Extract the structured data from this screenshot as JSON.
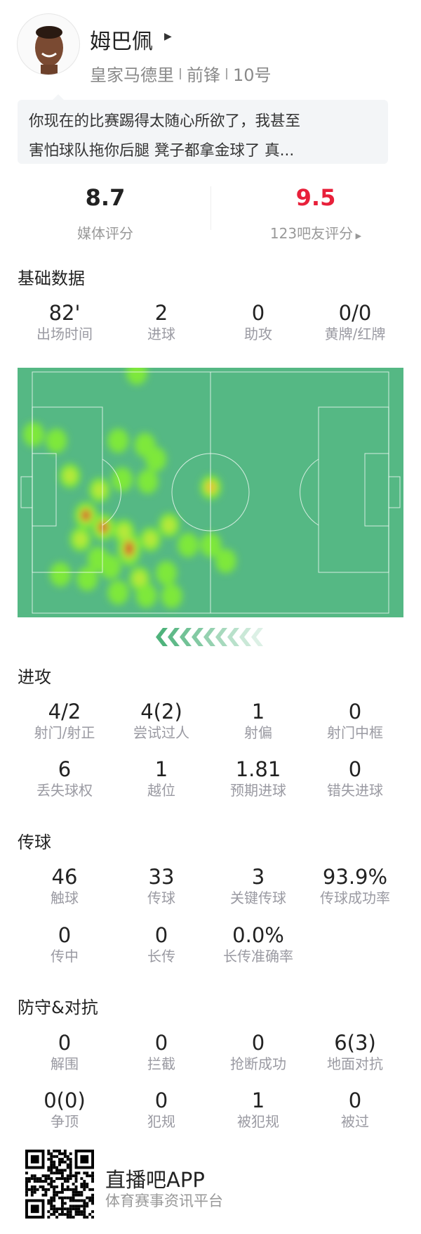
{
  "player": {
    "name": "姆巴佩",
    "team": "皇家马德里",
    "position": "前锋",
    "number": "10号"
  },
  "quote": {
    "line1": "你现在的比赛踢得太随心所欲了，我甚至",
    "line2": "害怕球队拖你后腿 凳子都拿金球了 真..."
  },
  "ratings": {
    "media_value": "8.7",
    "media_label": "媒体评分",
    "fan_value": "9.5",
    "fan_label": "123吧友评分",
    "fan_color": "#e8203a"
  },
  "basic": {
    "title": "基础数据",
    "stats": [
      {
        "v": "82'",
        "l": "出场时间"
      },
      {
        "v": "2",
        "l": "进球"
      },
      {
        "v": "0",
        "l": "助攻"
      },
      {
        "v": "0/0",
        "l": "黄牌/红牌"
      }
    ]
  },
  "heatmap": {
    "pitch_color": "#55b884",
    "attack_direction": "left",
    "points_m": [
      [
        30.8,
        0.2,
        1
      ],
      [
        0.4,
        17.6,
        1
      ],
      [
        7.1,
        19.4,
        1
      ],
      [
        25.3,
        19.4,
        1
      ],
      [
        33.2,
        20.6,
        1
      ],
      [
        36.4,
        24.6,
        1
      ],
      [
        11.1,
        29.3,
        1.5
      ],
      [
        26.5,
        30.3,
        1
      ],
      [
        34,
        30.9,
        1
      ],
      [
        19.8,
        33.3,
        1.4
      ],
      [
        52.6,
        32.5,
        2
      ],
      [
        15.8,
        40.4,
        3
      ],
      [
        20.9,
        43.8,
        3
      ],
      [
        28.5,
        49.8,
        3.2
      ],
      [
        40.3,
        43.2,
        1.4
      ],
      [
        45.9,
        48.8,
        1
      ],
      [
        52.6,
        48.8,
        1
      ],
      [
        57,
        53.3,
        1
      ],
      [
        19.4,
        52.7,
        1
      ],
      [
        8.3,
        57.1,
        1
      ],
      [
        16.2,
        58.3,
        1
      ],
      [
        39.5,
        56.7,
        1
      ],
      [
        31.6,
        58.3,
        1.5
      ],
      [
        25.3,
        62.2,
        1.3
      ],
      [
        33.6,
        63,
        1.3
      ],
      [
        41.1,
        63.2,
        1
      ],
      [
        14.2,
        47.2,
        1.5
      ],
      [
        34.8,
        47.2,
        1.5
      ],
      [
        27,
        45,
        1.6
      ],
      [
        23,
        55,
        1.2
      ]
    ]
  },
  "attack": {
    "title": "进攻",
    "rows": [
      [
        {
          "v": "4/2",
          "l": "射门/射正"
        },
        {
          "v": "4(2)",
          "l": "尝试过人"
        },
        {
          "v": "1",
          "l": "射偏"
        },
        {
          "v": "0",
          "l": "射门中框"
        }
      ],
      [
        {
          "v": "6",
          "l": "丢失球权"
        },
        {
          "v": "1",
          "l": "越位"
        },
        {
          "v": "1.81",
          "l": "预期进球"
        },
        {
          "v": "0",
          "l": "错失进球"
        }
      ]
    ]
  },
  "passing": {
    "title": "传球",
    "rows": [
      [
        {
          "v": "46",
          "l": "触球"
        },
        {
          "v": "33",
          "l": "传球"
        },
        {
          "v": "3",
          "l": "关键传球"
        },
        {
          "v": "93.9%",
          "l": "传球成功率"
        }
      ],
      [
        {
          "v": "0",
          "l": "传中"
        },
        {
          "v": "0",
          "l": "长传"
        },
        {
          "v": "0.0%",
          "l": "长传准确率"
        }
      ]
    ]
  },
  "defense": {
    "title": "防守&对抗",
    "rows": [
      [
        {
          "v": "0",
          "l": "解围"
        },
        {
          "v": "0",
          "l": "拦截"
        },
        {
          "v": "0",
          "l": "抢断成功"
        },
        {
          "v": "6(3)",
          "l": "地面对抗"
        }
      ],
      [
        {
          "v": "0(0)",
          "l": "争顶"
        },
        {
          "v": "0",
          "l": "犯规"
        },
        {
          "v": "1",
          "l": "被犯规"
        },
        {
          "v": "0",
          "l": "被过"
        }
      ]
    ]
  },
  "footer": {
    "app_name": "直播吧APP",
    "tagline": "体育赛事资讯平台"
  }
}
